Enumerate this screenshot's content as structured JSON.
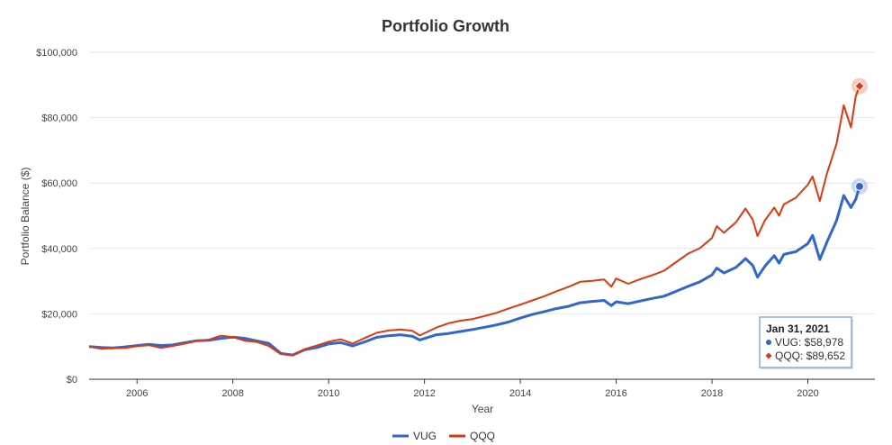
{
  "chart_data": {
    "type": "line",
    "title": "Portfolio Growth",
    "xlabel": "Year",
    "ylabel": "Portfolio Balance ($)",
    "xlim": [
      2005.0,
      2021.4
    ],
    "ylim": [
      0,
      100000
    ],
    "x_ticks": [
      2006,
      2008,
      2010,
      2012,
      2014,
      2016,
      2018,
      2020
    ],
    "x_tick_labels": [
      "2006",
      "2008",
      "2010",
      "2012",
      "2014",
      "2016",
      "2018",
      "2020"
    ],
    "y_ticks": [
      0,
      20000,
      40000,
      60000,
      80000,
      100000
    ],
    "y_tick_labels": [
      "$0",
      "$20,000",
      "$40,000",
      "$60,000",
      "$80,000",
      "$100,000"
    ],
    "grid": true,
    "legend_position": "bottom",
    "series": [
      {
        "name": "VUG",
        "color": "#3366cc",
        "points": [
          [
            2005.0,
            10000
          ],
          [
            2005.25,
            9700
          ],
          [
            2005.5,
            9600
          ],
          [
            2005.75,
            9900
          ],
          [
            2006.0,
            10300
          ],
          [
            2006.25,
            10700
          ],
          [
            2006.5,
            10300
          ],
          [
            2006.75,
            10500
          ],
          [
            2007.0,
            11200
          ],
          [
            2007.25,
            11800
          ],
          [
            2007.5,
            11900
          ],
          [
            2007.75,
            12500
          ],
          [
            2008.0,
            12900
          ],
          [
            2008.25,
            12500
          ],
          [
            2008.5,
            11700
          ],
          [
            2008.75,
            11000
          ],
          [
            2009.0,
            7900
          ],
          [
            2009.25,
            7400
          ],
          [
            2009.5,
            9000
          ],
          [
            2009.75,
            9700
          ],
          [
            2010.0,
            10800
          ],
          [
            2010.25,
            11200
          ],
          [
            2010.5,
            10200
          ],
          [
            2010.75,
            11400
          ],
          [
            2011.0,
            12800
          ],
          [
            2011.25,
            13300
          ],
          [
            2011.5,
            13600
          ],
          [
            2011.75,
            13100
          ],
          [
            2011.9,
            12000
          ],
          [
            2012.25,
            13600
          ],
          [
            2012.5,
            14000
          ],
          [
            2012.75,
            14600
          ],
          [
            2013.0,
            15200
          ],
          [
            2013.25,
            15900
          ],
          [
            2013.5,
            16600
          ],
          [
            2013.75,
            17500
          ],
          [
            2014.0,
            18700
          ],
          [
            2014.25,
            19800
          ],
          [
            2014.5,
            20700
          ],
          [
            2014.75,
            21600
          ],
          [
            2015.0,
            22300
          ],
          [
            2015.25,
            23400
          ],
          [
            2015.5,
            23800
          ],
          [
            2015.75,
            24100
          ],
          [
            2015.9,
            22500
          ],
          [
            2016.0,
            23700
          ],
          [
            2016.25,
            23100
          ],
          [
            2016.5,
            23900
          ],
          [
            2016.75,
            24700
          ],
          [
            2017.0,
            25400
          ],
          [
            2017.25,
            26900
          ],
          [
            2017.5,
            28400
          ],
          [
            2017.75,
            29800
          ],
          [
            2018.0,
            31900
          ],
          [
            2018.1,
            34000
          ],
          [
            2018.25,
            32500
          ],
          [
            2018.5,
            34200
          ],
          [
            2018.7,
            36900
          ],
          [
            2018.85,
            34800
          ],
          [
            2018.95,
            31200
          ],
          [
            2019.1,
            34500
          ],
          [
            2019.3,
            37800
          ],
          [
            2019.4,
            35500
          ],
          [
            2019.5,
            38200
          ],
          [
            2019.75,
            39000
          ],
          [
            2020.0,
            41500
          ],
          [
            2020.1,
            44000
          ],
          [
            2020.25,
            36600
          ],
          [
            2020.4,
            42000
          ],
          [
            2020.6,
            48500
          ],
          [
            2020.75,
            56200
          ],
          [
            2020.9,
            52500
          ],
          [
            2021.0,
            55000
          ],
          [
            2021.08,
            58978
          ]
        ]
      },
      {
        "name": "QQQ",
        "color": "#dc3912",
        "points": [
          [
            2005.0,
            10000
          ],
          [
            2005.25,
            9300
          ],
          [
            2005.5,
            9500
          ],
          [
            2005.75,
            9600
          ],
          [
            2006.0,
            10100
          ],
          [
            2006.25,
            10400
          ],
          [
            2006.5,
            9600
          ],
          [
            2006.75,
            10200
          ],
          [
            2007.0,
            10900
          ],
          [
            2007.25,
            11700
          ],
          [
            2007.5,
            12100
          ],
          [
            2007.75,
            13300
          ],
          [
            2008.0,
            12900
          ],
          [
            2008.25,
            11800
          ],
          [
            2008.5,
            11400
          ],
          [
            2008.75,
            10200
          ],
          [
            2009.0,
            7700
          ],
          [
            2009.25,
            7300
          ],
          [
            2009.5,
            9200
          ],
          [
            2009.75,
            10300
          ],
          [
            2010.0,
            11500
          ],
          [
            2010.25,
            12200
          ],
          [
            2010.5,
            10900
          ],
          [
            2010.75,
            12600
          ],
          [
            2011.0,
            14200
          ],
          [
            2011.25,
            14900
          ],
          [
            2011.5,
            15200
          ],
          [
            2011.75,
            14800
          ],
          [
            2011.9,
            13400
          ],
          [
            2012.25,
            15800
          ],
          [
            2012.5,
            17100
          ],
          [
            2012.75,
            17900
          ],
          [
            2013.0,
            18400
          ],
          [
            2013.25,
            19300
          ],
          [
            2013.5,
            20300
          ],
          [
            2013.75,
            21600
          ],
          [
            2014.0,
            22800
          ],
          [
            2014.25,
            24100
          ],
          [
            2014.5,
            25400
          ],
          [
            2014.75,
            26900
          ],
          [
            2015.0,
            28200
          ],
          [
            2015.25,
            29800
          ],
          [
            2015.5,
            30100
          ],
          [
            2015.75,
            30500
          ],
          [
            2015.9,
            28300
          ],
          [
            2016.0,
            30800
          ],
          [
            2016.25,
            29200
          ],
          [
            2016.5,
            30600
          ],
          [
            2016.75,
            31800
          ],
          [
            2017.0,
            33200
          ],
          [
            2017.25,
            35800
          ],
          [
            2017.5,
            38400
          ],
          [
            2017.75,
            40100
          ],
          [
            2018.0,
            43200
          ],
          [
            2018.1,
            46800
          ],
          [
            2018.25,
            44800
          ],
          [
            2018.5,
            48000
          ],
          [
            2018.7,
            52200
          ],
          [
            2018.85,
            48800
          ],
          [
            2018.95,
            43800
          ],
          [
            2019.1,
            48500
          ],
          [
            2019.3,
            52500
          ],
          [
            2019.4,
            50000
          ],
          [
            2019.5,
            53500
          ],
          [
            2019.75,
            55500
          ],
          [
            2020.0,
            59500
          ],
          [
            2020.1,
            62000
          ],
          [
            2020.25,
            54500
          ],
          [
            2020.4,
            63000
          ],
          [
            2020.6,
            72000
          ],
          [
            2020.75,
            83800
          ],
          [
            2020.9,
            77000
          ],
          [
            2021.0,
            86500
          ],
          [
            2021.08,
            89652
          ]
        ]
      }
    ],
    "tooltip": {
      "title": "Jan 31, 2021",
      "x": 2021.08,
      "rows": [
        {
          "series": "VUG",
          "text": "VUG: $58,978",
          "value": 58978
        },
        {
          "series": "QQQ",
          "text": "QQQ: $89,652",
          "value": 89652
        }
      ]
    }
  }
}
